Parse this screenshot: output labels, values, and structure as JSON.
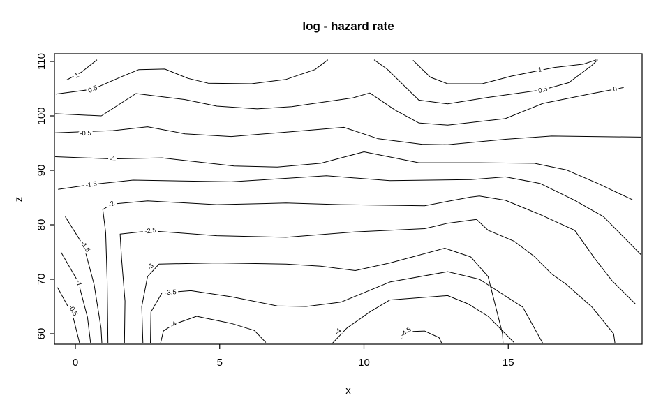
{
  "title": "log - hazard rate",
  "chart_data": {
    "type": "contour",
    "title": "log - hazard rate",
    "xlabel": "x",
    "ylabel": "z",
    "x_ticks": [
      0,
      5,
      10,
      15
    ],
    "z_ticks": [
      60,
      70,
      80,
      90,
      100,
      110
    ],
    "x_range": [
      -0.73,
      19.62
    ],
    "z_range": [
      58.1,
      111.4
    ],
    "grid": false,
    "legend": "none",
    "line_color": "#000000",
    "levels": [
      1,
      0.5,
      0,
      -0.5,
      -1,
      -1.5,
      -2,
      -2.5,
      -3,
      -3.5,
      -4,
      -4.5
    ],
    "contours": [
      {
        "level": 1,
        "label": "1",
        "label_at": [
          0.05,
          107.4
        ],
        "points": [
          [
            -0.3,
            106.6
          ],
          [
            0.2,
            108.0
          ],
          [
            0.75,
            110.3
          ]
        ]
      },
      {
        "level": 1,
        "label": "1",
        "label_at": [
          16.1,
          108.5
        ],
        "points": [
          [
            11.7,
            110.2
          ],
          [
            12.3,
            107.1
          ],
          [
            12.9,
            105.9
          ],
          [
            14.1,
            105.9
          ],
          [
            15.1,
            107.3
          ],
          [
            16.6,
            108.9
          ],
          [
            17.6,
            109.5
          ],
          [
            18.05,
            110.3
          ]
        ]
      },
      {
        "level": 0.5,
        "label": "0.5",
        "label_at": [
          0.6,
          104.9
        ],
        "points": [
          [
            -0.68,
            104.0
          ],
          [
            0.6,
            104.9
          ],
          [
            1.6,
            107.2
          ],
          [
            2.2,
            108.5
          ],
          [
            3.1,
            108.6
          ],
          [
            3.9,
            106.9
          ],
          [
            4.6,
            106.0
          ],
          [
            6.1,
            105.9
          ],
          [
            7.3,
            106.7
          ],
          [
            8.3,
            108.5
          ],
          [
            8.75,
            110.3
          ]
        ]
      },
      {
        "level": 0.5,
        "label": "0.5",
        "label_at": [
          16.2,
          104.8
        ],
        "points": [
          [
            10.35,
            110.3
          ],
          [
            10.8,
            108.6
          ],
          [
            11.9,
            102.9
          ],
          [
            12.9,
            102.2
          ],
          [
            14.3,
            103.4
          ],
          [
            16.2,
            104.8
          ],
          [
            17.1,
            106.1
          ],
          [
            17.9,
            109.3
          ],
          [
            18.1,
            110.3
          ]
        ]
      },
      {
        "level": 0,
        "label": "0",
        "label_at": [
          18.7,
          104.9
        ],
        "points": [
          [
            -0.7,
            100.4
          ],
          [
            0.9,
            100.0
          ],
          [
            2.1,
            104.1
          ],
          [
            3.8,
            103.0
          ],
          [
            4.9,
            101.8
          ],
          [
            6.3,
            101.3
          ],
          [
            7.5,
            101.7
          ],
          [
            9.6,
            103.3
          ],
          [
            10.2,
            104.2
          ],
          [
            11.1,
            101.0
          ],
          [
            11.9,
            98.7
          ],
          [
            12.9,
            98.3
          ],
          [
            14.9,
            99.5
          ],
          [
            16.2,
            102.3
          ],
          [
            17.9,
            104.1
          ],
          [
            19.0,
            105.2
          ]
        ]
      },
      {
        "level": -0.5,
        "label": "-0.5",
        "label_at": [
          0.35,
          96.8
        ],
        "points": [
          [
            -0.7,
            96.9
          ],
          [
            1.3,
            97.3
          ],
          [
            2.5,
            98.0
          ],
          [
            3.8,
            96.7
          ],
          [
            5.4,
            96.2
          ],
          [
            7.5,
            97.1
          ],
          [
            9.3,
            97.9
          ],
          [
            10.5,
            95.8
          ],
          [
            12.0,
            94.8
          ],
          [
            12.9,
            94.7
          ],
          [
            14.9,
            95.7
          ],
          [
            16.5,
            96.3
          ],
          [
            19.6,
            96.1
          ]
        ]
      },
      {
        "level": -1,
        "label": "-1",
        "label_at": [
          1.3,
          92.1
        ],
        "points": [
          [
            -0.7,
            92.5
          ],
          [
            1.3,
            92.1
          ],
          [
            3.0,
            92.3
          ],
          [
            5.5,
            90.8
          ],
          [
            7.0,
            90.6
          ],
          [
            8.5,
            91.3
          ],
          [
            10.0,
            93.4
          ],
          [
            11.9,
            91.4
          ],
          [
            14.0,
            91.4
          ],
          [
            15.9,
            91.3
          ],
          [
            17.0,
            90.1
          ],
          [
            18.1,
            87.6
          ],
          [
            19.3,
            84.6
          ]
        ]
      },
      {
        "level": -1.5,
        "label": "-1.5",
        "label_at": [
          0.55,
          87.4
        ],
        "points": [
          [
            -0.6,
            86.5
          ],
          [
            0.55,
            87.4
          ],
          [
            2.0,
            88.2
          ],
          [
            5.4,
            87.9
          ],
          [
            8.7,
            89.0
          ],
          [
            10.9,
            88.1
          ],
          [
            13.7,
            88.3
          ],
          [
            14.9,
            88.8
          ],
          [
            16.1,
            87.6
          ],
          [
            17.3,
            84.5
          ],
          [
            18.3,
            81.5
          ],
          [
            19.6,
            74.5
          ]
        ]
      },
      {
        "level": -1.5,
        "label": "-1.5",
        "label_at": [
          0.35,
          76.0
        ],
        "points": [
          [
            -0.35,
            81.5
          ],
          [
            0.3,
            76.0
          ],
          [
            0.65,
            69.0
          ],
          [
            0.89,
            61.0
          ],
          [
            0.92,
            58.2
          ]
        ]
      },
      {
        "level": -1,
        "label": "-1",
        "label_at": [
          0.12,
          69.3
        ],
        "points": [
          [
            -0.5,
            75.0
          ],
          [
            0.1,
            69.5
          ],
          [
            0.42,
            63.0
          ],
          [
            0.53,
            58.2
          ]
        ]
      },
      {
        "level": -0.5,
        "label": "-0.5",
        "label_at": [
          -0.08,
          64.3
        ],
        "points": [
          [
            -0.62,
            68.5
          ],
          [
            -0.1,
            63.5
          ],
          [
            0.15,
            58.2
          ]
        ]
      },
      {
        "level": -2,
        "label": "-2",
        "label_at": [
          1.25,
          83.8
        ],
        "points": [
          [
            1.13,
            58.2
          ],
          [
            1.1,
            70.0
          ],
          [
            1.05,
            78.6
          ],
          [
            0.95,
            82.8
          ],
          [
            1.25,
            83.8
          ],
          [
            2.5,
            84.4
          ],
          [
            4.9,
            83.7
          ],
          [
            7.3,
            84.0
          ],
          [
            9.2,
            83.7
          ],
          [
            12.1,
            83.5
          ],
          [
            13.7,
            85.1
          ],
          [
            14.0,
            85.3
          ],
          [
            14.9,
            84.5
          ],
          [
            16.1,
            81.9
          ],
          [
            17.3,
            79.0
          ],
          [
            18.0,
            73.8
          ],
          [
            18.6,
            69.7
          ],
          [
            19.4,
            65.5
          ]
        ]
      },
      {
        "level": -2.5,
        "label": "-2.5",
        "label_at": [
          2.6,
          78.9
        ],
        "points": [
          [
            1.7,
            58.2
          ],
          [
            1.72,
            66.0
          ],
          [
            1.6,
            73.8
          ],
          [
            1.55,
            78.3
          ],
          [
            2.6,
            78.9
          ],
          [
            4.9,
            78.0
          ],
          [
            7.3,
            77.7
          ],
          [
            9.7,
            78.7
          ],
          [
            12.1,
            79.3
          ],
          [
            12.9,
            80.3
          ],
          [
            13.9,
            81.0
          ],
          [
            14.3,
            79.0
          ],
          [
            15.2,
            77.0
          ],
          [
            15.9,
            74.2
          ],
          [
            16.5,
            71.0
          ],
          [
            17.0,
            69.1
          ],
          [
            17.9,
            64.9
          ],
          [
            18.65,
            60.0
          ],
          [
            18.7,
            58.2
          ]
        ]
      },
      {
        "level": -3,
        "label": "-3",
        "label_at": [
          2.6,
          72.3
        ],
        "points": [
          [
            2.34,
            58.2
          ],
          [
            2.3,
            65.0
          ],
          [
            2.5,
            70.5
          ],
          [
            2.9,
            72.8
          ],
          [
            4.9,
            73.0
          ],
          [
            7.3,
            72.8
          ],
          [
            8.5,
            72.4
          ],
          [
            9.7,
            71.6
          ],
          [
            10.9,
            73.0
          ],
          [
            12.8,
            75.7
          ],
          [
            13.7,
            74.1
          ],
          [
            14.3,
            70.5
          ],
          [
            14.8,
            60.0
          ],
          [
            14.82,
            58.2
          ]
        ]
      },
      {
        "level": -3.5,
        "label": "-3.5",
        "label_at": [
          3.3,
          67.6
        ],
        "points": [
          [
            2.6,
            58.2
          ],
          [
            2.62,
            64.0
          ],
          [
            3.0,
            67.5
          ],
          [
            4.0,
            67.9
          ],
          [
            5.4,
            66.8
          ],
          [
            7.0,
            65.1
          ],
          [
            8.0,
            65.0
          ],
          [
            9.2,
            65.8
          ],
          [
            10.9,
            69.5
          ],
          [
            12.9,
            71.4
          ],
          [
            14.0,
            70.0
          ],
          [
            15.5,
            64.9
          ],
          [
            16.2,
            58.2
          ]
        ]
      },
      {
        "level": -4,
        "label": "-4",
        "label_at": [
          3.4,
          61.7
        ],
        "points": [
          [
            2.95,
            58.2
          ],
          [
            3.05,
            60.5
          ],
          [
            3.4,
            61.7
          ],
          [
            4.2,
            63.2
          ],
          [
            5.4,
            61.9
          ],
          [
            6.2,
            60.6
          ],
          [
            6.6,
            58.4
          ]
        ]
      },
      {
        "level": -4,
        "label": "-4",
        "label_at": [
          9.1,
          60.4
        ],
        "points": [
          [
            8.9,
            58.2
          ],
          [
            9.4,
            61.0
          ],
          [
            10.2,
            64.0
          ],
          [
            10.9,
            66.2
          ],
          [
            12.9,
            67.0
          ],
          [
            13.6,
            65.5
          ],
          [
            14.3,
            63.2
          ],
          [
            15.2,
            58.4
          ]
        ]
      },
      {
        "level": -4.5,
        "label": "-4.5",
        "label_at": [
          11.45,
          60.3
        ],
        "points": [
          [
            11.3,
            59.2
          ],
          [
            11.6,
            60.4
          ],
          [
            12.1,
            60.5
          ],
          [
            12.6,
            59.3
          ],
          [
            12.7,
            58.2
          ]
        ]
      }
    ]
  }
}
